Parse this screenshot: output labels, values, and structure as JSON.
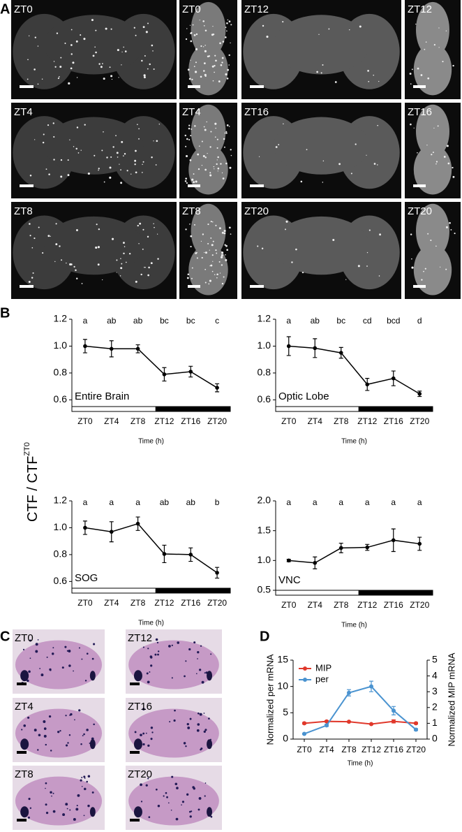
{
  "panel_labels": [
    "A",
    "B",
    "C",
    "D"
  ],
  "panel_a": {
    "labels": [
      "ZT0",
      "ZT0",
      "ZT12",
      "ZT12",
      "ZT4",
      "ZT4",
      "ZT16",
      "ZT16",
      "ZT8",
      "ZT8",
      "ZT20",
      "ZT20"
    ]
  },
  "panel_b": {
    "y_label": "CTF / CTF",
    "y_label_sup": "ZT0"
  },
  "panel_c": {
    "labels": [
      "ZT0",
      "ZT12",
      "ZT4",
      "ZT16",
      "ZT8",
      "ZT20"
    ]
  },
  "chart_data": [
    {
      "type": "line",
      "label": "Entire Brain",
      "x_label": "Time (h)",
      "categories": [
        "ZT0",
        "ZT4",
        "ZT8",
        "ZT12",
        "ZT16",
        "ZT20"
      ],
      "values": [
        1.0,
        0.98,
        0.98,
        0.79,
        0.81,
        0.69
      ],
      "errors": [
        0.05,
        0.06,
        0.03,
        0.05,
        0.04,
        0.03
      ],
      "significance_letters": [
        "a",
        "ab",
        "ab",
        "bc",
        "bc",
        "c"
      ],
      "color": "#000000",
      "ylim": [
        0.55,
        1.2
      ],
      "yticks": [
        0.6,
        0.8,
        {
          "value": 1.0,
          "label": "1.0"
        },
        1.2
      ]
    },
    {
      "type": "line",
      "label": "Optic Lobe",
      "x_label": "Time (h)",
      "categories": [
        "ZT0",
        "ZT4",
        "ZT8",
        "ZT12",
        "ZT16",
        "ZT20"
      ],
      "values": [
        1.0,
        0.985,
        0.95,
        0.715,
        0.76,
        0.645
      ],
      "errors": [
        0.07,
        0.07,
        0.04,
        0.045,
        0.055,
        0.02
      ],
      "significance_letters": [
        "a",
        "ab",
        "bc",
        "cd",
        "bcd",
        "d"
      ],
      "color": "#000000",
      "ylim": [
        0.55,
        1.2
      ],
      "yticks": [
        0.6,
        0.8,
        {
          "value": 1.0,
          "label": "1.0"
        },
        1.2
      ]
    },
    {
      "type": "line",
      "label": "SOG",
      "x_label": "Time (h)",
      "categories": [
        "ZT0",
        "ZT4",
        "ZT8",
        "ZT12",
        "ZT16",
        "ZT20"
      ],
      "values": [
        1.0,
        0.97,
        1.03,
        0.805,
        0.8,
        0.665
      ],
      "errors": [
        0.05,
        0.075,
        0.05,
        0.065,
        0.05,
        0.04
      ],
      "significance_letters": [
        "a",
        "a",
        "a",
        "ab",
        "ab",
        "b"
      ],
      "color": "#000000",
      "ylim": [
        0.55,
        1.2
      ],
      "yticks": [
        0.6,
        0.8,
        {
          "value": 1.0,
          "label": "1.0"
        },
        1.2
      ]
    },
    {
      "type": "line",
      "label": "VNC",
      "x_label": "Time (h)",
      "categories": [
        "ZT0",
        "ZT4",
        "ZT8",
        "ZT12",
        "ZT16",
        "ZT20"
      ],
      "values": [
        1.0,
        0.96,
        1.21,
        1.22,
        1.34,
        1.28
      ],
      "errors": [
        0.02,
        0.1,
        0.08,
        0.05,
        0.19,
        0.11
      ],
      "significance_letters": [
        "a",
        "a",
        "a",
        "a",
        "a",
        "a"
      ],
      "color": "#000000",
      "ylim": [
        0.5,
        2.0
      ],
      "yticks": [
        0.5,
        {
          "value": 1.0,
          "label": "1.0"
        },
        1.5,
        {
          "value": 2.0,
          "label": "2.0"
        }
      ]
    },
    {
      "type": "dual_line",
      "x_label": "Time (h)",
      "y_label": "Normalized per mRNA",
      "y2_label": "Normalized MIP mRNA",
      "categories": [
        "ZT0",
        "ZT4",
        "ZT8",
        "ZT12",
        "ZT16",
        "ZT20"
      ],
      "series": [
        {
          "name": "MIP",
          "color": "#e0382b",
          "axis": "y2",
          "values": [
            1.0,
            1.12,
            1.1,
            0.95,
            1.12,
            1.0
          ],
          "errors": [
            0.05,
            0.05,
            0.03,
            0.03,
            0.1,
            0.05
          ]
        },
        {
          "name": "per",
          "color": "#4a93d0",
          "values": [
            1.0,
            2.6,
            8.8,
            10.0,
            5.4,
            1.8
          ],
          "errors": [
            0.1,
            0.2,
            0.6,
            1.0,
            0.8,
            0.2
          ]
        }
      ],
      "ylim": [
        0,
        15
      ],
      "yticks": [
        0,
        5,
        10,
        15
      ],
      "y2lim": [
        0,
        5
      ],
      "y2ticks": [
        0,
        1,
        2,
        3,
        4,
        5
      ],
      "legend": "top-left"
    }
  ]
}
